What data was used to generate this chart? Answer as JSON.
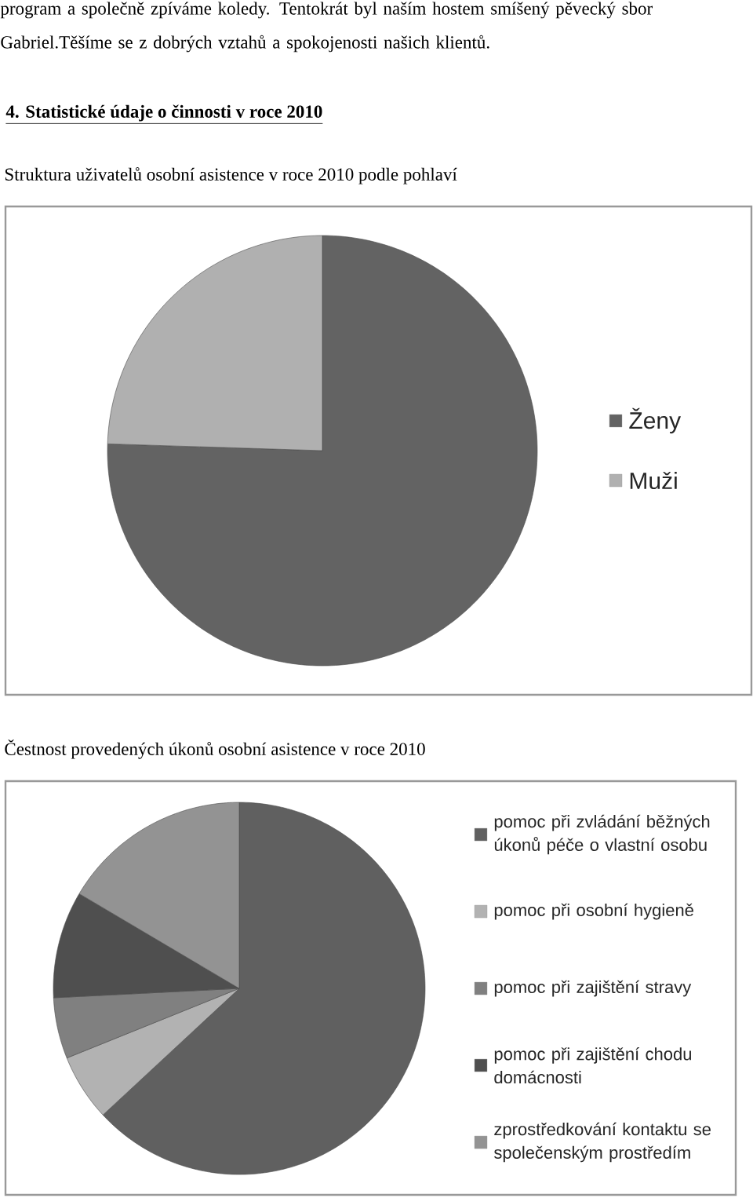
{
  "chart_data": [
    {
      "type": "pie",
      "title": "Struktura uživatelů osobní asistence v roce 2010 podle pohlaví",
      "annotations": [
        "program a společně zpíváme koledy. Tentokrát byl naším hostem smíšený pěvecký sbor Gabriel.Těšíme se z dobrých vztahů a spokojenosti našich klientů.",
        "4. Statistické údaje o činnosti v roce 2010"
      ],
      "categories": [
        "Ženy",
        "Muži"
      ],
      "values": [
        75.5,
        24.5
      ],
      "colors": [
        "#636363",
        "#b0b0b0"
      ],
      "legend": "right"
    },
    {
      "type": "pie",
      "title": "Čestnost provedených úkonů osobní asistence v roce 2010",
      "categories": [
        "pomoc při zvládání běžných úkonů péče o vlastní osobu",
        "pomoc při osobní hygieně",
        "pomoc při zajištění stravy",
        "pomoc při zajištění chodu domácnosti",
        "zprostředkování kontaktu se společenským prostředím"
      ],
      "values": [
        63.1,
        5.8,
        5.3,
        9.3,
        16.5
      ],
      "colors": [
        "#606060",
        "#b2b2b2",
        "#808080",
        "#4f4f4f",
        "#939393"
      ],
      "legend": "right"
    }
  ]
}
